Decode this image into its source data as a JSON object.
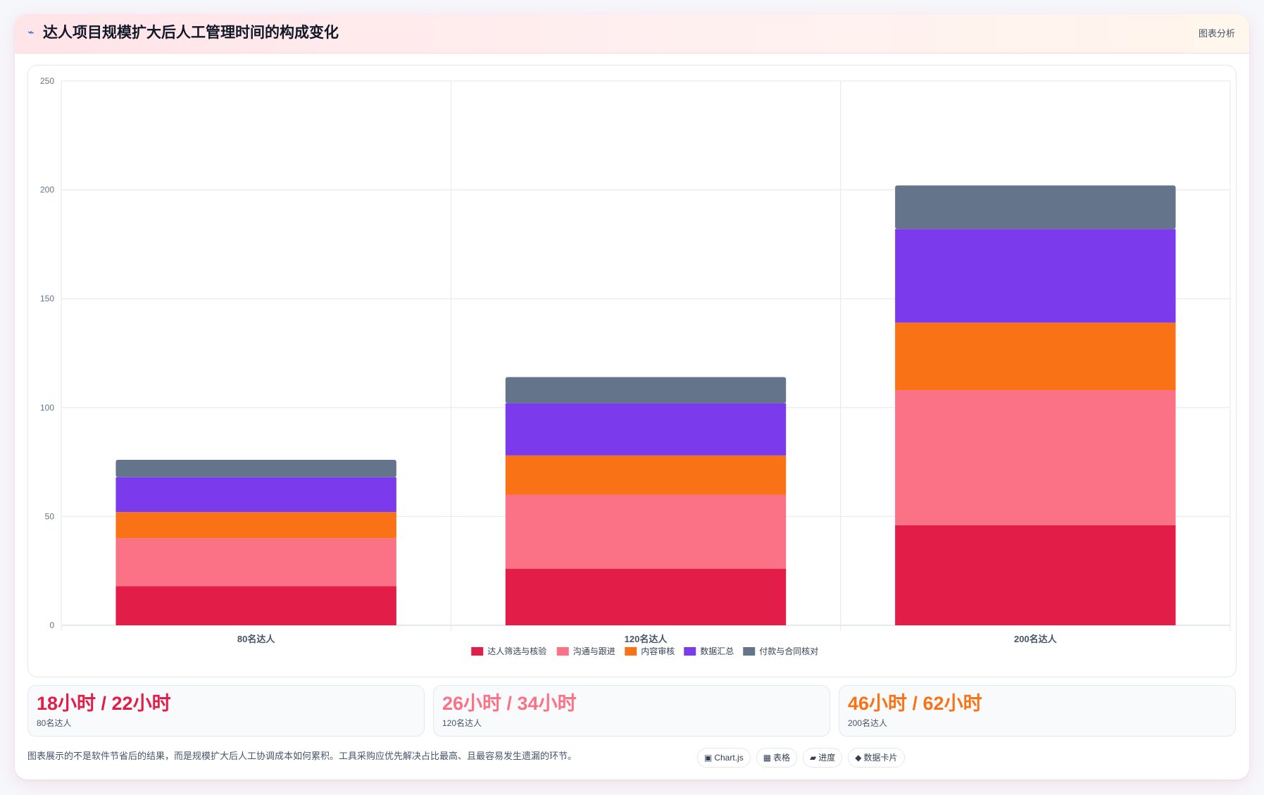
{
  "header": {
    "icon": "chart-line-icon",
    "title": "达人项目规模扩大后人工管理时间的构成变化",
    "action_label": "图表分析"
  },
  "chart_data": {
    "type": "bar",
    "stacked": true,
    "categories": [
      "80名达人",
      "120名达人",
      "200名达人"
    ],
    "series": [
      {
        "name": "达人筛选与核验",
        "color": "#e11d48",
        "values": [
          18,
          26,
          46
        ]
      },
      {
        "name": "沟通与跟进",
        "color": "#fb7185",
        "values": [
          22,
          34,
          62
        ]
      },
      {
        "name": "内容审核",
        "color": "#f97316",
        "values": [
          12,
          18,
          31
        ]
      },
      {
        "name": "数据汇总",
        "color": "#7c3aed",
        "values": [
          16,
          24,
          43
        ]
      },
      {
        "name": "付款与合同核对",
        "color": "#64748b",
        "values": [
          8,
          12,
          20
        ]
      }
    ],
    "ylim": [
      0,
      250
    ],
    "yticks": [
      0,
      50,
      100,
      150,
      200,
      250
    ],
    "grid": true,
    "legend_position": "bottom"
  },
  "stats": [
    {
      "value": "18小时 / 22小时",
      "label": "80名达人",
      "color": "#e11d48"
    },
    {
      "value": "26小时 / 34小时",
      "label": "120名达人",
      "color": "#fb7185"
    },
    {
      "value": "46小时 / 62小时",
      "label": "200名达人",
      "color": "#f97316"
    }
  ],
  "footnote": "图表展示的不是软件节省后的结果，而是规模扩大后人工协调成本如何累积。工具采购应优先解决占比最高、且最容易发生遗漏的环节。",
  "chips": [
    {
      "icon": "▣",
      "icon_name": "chart-icon",
      "label": "Chart.js"
    },
    {
      "icon": "▦",
      "icon_name": "table-icon",
      "label": "表格"
    },
    {
      "icon": "▰",
      "icon_name": "progress-icon",
      "label": "进度"
    },
    {
      "icon": "◆",
      "icon_name": "diamond-icon",
      "label": "数据卡片"
    }
  ]
}
